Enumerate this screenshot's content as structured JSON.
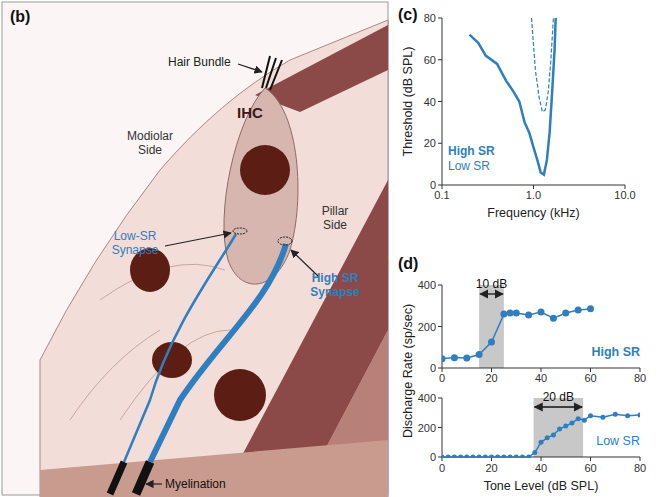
{
  "diagram": {
    "title": "(b)",
    "labels": [
      {
        "lines": [
          "Hair Bundle"
        ]
      },
      {
        "lines": [
          "IHC"
        ]
      },
      {
        "lines": [
          "Modiolar",
          "Side"
        ]
      },
      {
        "lines": [
          "Pillar",
          "Side"
        ]
      },
      {
        "lines": [
          "Low-SR",
          "Synapse"
        ]
      },
      {
        "lines": [
          "High SR",
          "Synapse"
        ]
      },
      {
        "lines": [
          "Myelination"
        ]
      }
    ]
  },
  "chart_data": [
    {
      "title": "(c)",
      "type": "line",
      "log": "x",
      "xlabel": "Frequency (kHz)",
      "ylabel": "Threshold (dB SPL)",
      "xlim": [
        0.1,
        10
      ],
      "xticks": [
        0.1,
        {
          "value": 1,
          "label": "1.0"
        },
        {
          "value": 10,
          "label": "10.0"
        }
      ],
      "ylim": [
        0,
        80
      ],
      "yticks": [
        0,
        20,
        40,
        60,
        80
      ],
      "legend": "lower left",
      "series": [
        {
          "name": "High SR",
          "color": "#2f7fc0",
          "line_style": "solid",
          "x": [
            0.2,
            0.25,
            0.3,
            0.4,
            0.5,
            0.6,
            0.7,
            0.8,
            0.9,
            1.0,
            1.1,
            1.2,
            1.3,
            1.4,
            1.5,
            1.6,
            1.7,
            1.75
          ],
          "values": [
            72,
            68,
            62,
            58,
            50,
            45,
            40,
            30,
            25,
            18,
            12,
            6,
            5,
            12,
            25,
            45,
            65,
            80
          ]
        },
        {
          "name": "Low SR",
          "color": "#2f7fc0",
          "line_style": "dashed",
          "x": [
            0.95,
            1.05,
            1.15,
            1.25,
            1.35,
            1.45,
            1.55,
            1.65
          ],
          "values": [
            80,
            55,
            42,
            35,
            36,
            45,
            60,
            80
          ]
        }
      ]
    },
    {
      "title": "(d)",
      "type": "line",
      "ylabel": "Discharge Rate (sp/sec)",
      "xlim": [
        0,
        80
      ],
      "xticks": [
        0,
        20,
        40,
        60,
        80
      ],
      "ylim": [
        0,
        400
      ],
      "yticks": [
        0,
        200,
        400
      ],
      "annotations": [
        {
          "x0": 15,
          "x1": 25,
          "label": "10 dB"
        }
      ],
      "series": [
        {
          "name": "High SR",
          "color": "#2f7fc0",
          "marker": "circle",
          "x": [
            0,
            5,
            10,
            15,
            20,
            25,
            27.5,
            30,
            35,
            40,
            45,
            50,
            55,
            60
          ],
          "values": [
            45,
            50,
            48,
            65,
            125,
            260,
            265,
            265,
            255,
            270,
            240,
            265,
            280,
            285
          ]
        }
      ]
    },
    {
      "type": "line",
      "xlabel": "Tone Level (dB SPL)",
      "xlim": [
        0,
        80
      ],
      "xticks": [
        0,
        20,
        40,
        60,
        80
      ],
      "ylim": [
        0,
        400
      ],
      "yticks": [
        0,
        200,
        400
      ],
      "annotations": [
        {
          "x0": 37,
          "x1": 57,
          "label": "20 dB"
        }
      ],
      "series": [
        {
          "name": "Low SR",
          "color": "#2f7fc0",
          "marker": "circle",
          "x": [
            0,
            2.5,
            5,
            7.5,
            10,
            12.5,
            15,
            17.5,
            20,
            22.5,
            25,
            27.5,
            30,
            32.5,
            35,
            37.5,
            40,
            42.5,
            45,
            47.5,
            50,
            52.5,
            55,
            57.5,
            60,
            65,
            70,
            75,
            80
          ],
          "values": [
            0,
            0,
            0,
            0,
            0,
            0,
            0,
            0,
            0,
            0,
            0,
            0,
            0,
            0,
            0,
            30,
            100,
            130,
            150,
            190,
            210,
            230,
            260,
            250,
            280,
            270,
            290,
            280,
            285
          ]
        }
      ]
    }
  ]
}
